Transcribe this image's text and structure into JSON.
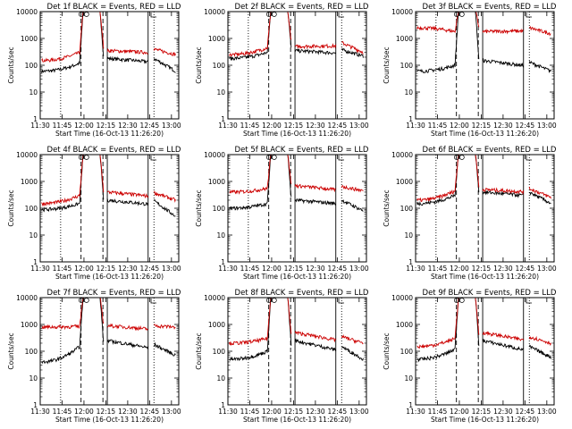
{
  "chart_data": [
    {
      "type": "line",
      "title": "Det 1f BLACK = Events, RED = LLD",
      "xlabel": "Start Time (16-Oct-13 11:26:20)",
      "ylabel": "Counts/sec",
      "yscale": "log",
      "ylim": [
        1,
        10000
      ],
      "x_ticklabels": [
        "11:30",
        "11:45",
        "12:00",
        "12:15",
        "12:30",
        "12:45",
        "13:00"
      ],
      "y_ticklabels": [
        "1",
        "10",
        "100",
        "1000",
        "10000"
      ],
      "series": [
        {
          "color": "#000000",
          "base_before": 60,
          "base_after": 180,
          "end": 60,
          "mid": [
            120,
            180
          ]
        },
        {
          "color": "#cc0000",
          "base_before": 150,
          "base_after": 350,
          "end": 250,
          "mid": [
            300,
            400
          ]
        }
      ],
      "vlines": {
        "dashed": [
          "11:58",
          "12:13"
        ],
        "dotted": [
          "11:44",
          "12:48"
        ],
        "solid": [
          "12:16",
          "12:44"
        ]
      }
    },
    {
      "type": "line",
      "title": "Det 2f BLACK = Events, RED = LLD",
      "xlabel": "Start Time (16-Oct-13 11:26:20)",
      "ylabel": "Counts/sec",
      "yscale": "log",
      "ylim": [
        1,
        10000
      ],
      "x_ticklabels": [
        "11:30",
        "11:45",
        "12:00",
        "12:15",
        "12:30",
        "12:45",
        "13:00"
      ],
      "y_ticklabels": [
        "1",
        "10",
        "100",
        "1000",
        "10000"
      ],
      "series": [
        {
          "color": "#000000",
          "base_before": 180,
          "base_after": 350,
          "end": 220,
          "mid": [
            300,
            380
          ]
        },
        {
          "color": "#cc0000",
          "base_before": 250,
          "base_after": 500,
          "end": 300,
          "mid": [
            450,
            700
          ]
        }
      ],
      "vlines": {
        "dashed": [
          "11:58",
          "12:13"
        ],
        "dotted": [
          "11:44",
          "12:48"
        ],
        "solid": [
          "12:16",
          "12:44"
        ]
      }
    },
    {
      "type": "line",
      "title": "Det 3f BLACK = Events, RED = LLD",
      "xlabel": "Start Time (16-Oct-13 11:26:20)",
      "ylabel": "Counts/sec",
      "yscale": "log",
      "ylim": [
        1,
        10000
      ],
      "x_ticklabels": [
        "11:30",
        "11:45",
        "12:00",
        "12:15",
        "12:30",
        "12:45",
        "13:00"
      ],
      "y_ticklabels": [
        "1",
        "10",
        "100",
        "1000",
        "10000"
      ],
      "series": [
        {
          "color": "#000000",
          "base_before": 60,
          "base_after": 150,
          "end": 60,
          "mid": [
            100,
            130
          ]
        },
        {
          "color": "#cc0000",
          "base_before": 2500,
          "base_after": 1800,
          "end": 1500,
          "mid": [
            1800,
            2500
          ]
        }
      ],
      "vlines": {
        "dashed": [
          "11:58",
          "12:13"
        ],
        "dotted": [
          "11:44",
          "12:48"
        ],
        "solid": [
          "12:16",
          "12:44"
        ]
      }
    },
    {
      "type": "line",
      "title": "Det 4f BLACK = Events, RED = LLD",
      "xlabel": "Start Time (16-Oct-13 11:26:20)",
      "ylabel": "Counts/sec",
      "yscale": "log",
      "ylim": [
        1,
        10000
      ],
      "x_ticklabels": [
        "11:30",
        "11:45",
        "12:00",
        "12:15",
        "12:30",
        "12:45",
        "13:00"
      ],
      "y_ticklabels": [
        "1",
        "10",
        "100",
        "1000",
        "10000"
      ],
      "series": [
        {
          "color": "#000000",
          "base_before": 90,
          "base_after": 200,
          "end": 50,
          "mid": [
            150,
            190
          ]
        },
        {
          "color": "#cc0000",
          "base_before": 150,
          "base_after": 400,
          "end": 200,
          "mid": [
            300,
            380
          ]
        }
      ],
      "vlines": {
        "dashed": [
          "11:58",
          "12:13"
        ],
        "dotted": [
          "11:44",
          "12:48"
        ],
        "solid": [
          "12:16",
          "12:44"
        ]
      }
    },
    {
      "type": "line",
      "title": "Det 5f BLACK = Events, RED = LLD",
      "xlabel": "Start Time (16-Oct-13 11:26:20)",
      "ylabel": "Counts/sec",
      "yscale": "log",
      "ylim": [
        1,
        10000
      ],
      "x_ticklabels": [
        "11:30",
        "11:45",
        "12:00",
        "12:15",
        "12:30",
        "12:45",
        "13:00"
      ],
      "y_ticklabels": [
        "1",
        "10",
        "100",
        "1000",
        "10000"
      ],
      "series": [
        {
          "color": "#000000",
          "base_before": 100,
          "base_after": 200,
          "end": 80,
          "mid": [
            150,
            200
          ]
        },
        {
          "color": "#cc0000",
          "base_before": 400,
          "base_after": 700,
          "end": 450,
          "mid": [
            550,
            650
          ]
        }
      ],
      "vlines": {
        "dashed": [
          "11:58",
          "12:13"
        ],
        "dotted": [
          "11:44",
          "12:48"
        ],
        "solid": [
          "12:16",
          "12:44"
        ]
      }
    },
    {
      "type": "line",
      "title": "Det 6f BLACK = Events, RED = LLD",
      "xlabel": "Start Time (16-Oct-13 11:26:20)",
      "ylabel": "Counts/sec",
      "yscale": "log",
      "ylim": [
        1,
        10000
      ],
      "x_ticklabels": [
        "11:30",
        "11:45",
        "12:00",
        "12:15",
        "12:30",
        "12:45",
        "13:00"
      ],
      "y_ticklabels": [
        "1",
        "10",
        "100",
        "1000",
        "10000"
      ],
      "series": [
        {
          "color": "#000000",
          "base_before": 150,
          "base_after": 400,
          "end": 150,
          "mid": [
            300,
            400
          ]
        },
        {
          "color": "#cc0000",
          "base_before": 200,
          "base_after": 500,
          "end": 250,
          "mid": [
            450,
            550
          ]
        }
      ],
      "vlines": {
        "dashed": [
          "11:58",
          "12:13"
        ],
        "dotted": [
          "11:44",
          "12:48"
        ],
        "solid": [
          "12:16",
          "12:44"
        ]
      }
    },
    {
      "type": "line",
      "title": "Det 7f BLACK = Events, RED = LLD",
      "xlabel": "Start Time (16-Oct-13 11:26:20)",
      "ylabel": "Counts/sec",
      "yscale": "log",
      "ylim": [
        1,
        10000
      ],
      "x_ticklabels": [
        "11:30",
        "11:45",
        "12:00",
        "12:15",
        "12:30",
        "12:45",
        "13:00"
      ],
      "y_ticklabels": [
        "1",
        "10",
        "100",
        "1000",
        "10000"
      ],
      "series": [
        {
          "color": "#000000",
          "base_before": 40,
          "base_after": 250,
          "end": 70,
          "mid": [
            150,
            180
          ]
        },
        {
          "color": "#cc0000",
          "base_before": 800,
          "base_after": 900,
          "end": 800,
          "mid": [
            850,
            900
          ]
        }
      ],
      "vlines": {
        "dashed": [
          "11:58",
          "12:13"
        ],
        "dotted": [
          "11:44",
          "12:48"
        ],
        "solid": [
          "12:16",
          "12:44"
        ]
      }
    },
    {
      "type": "line",
      "title": "Det 8f BLACK = Events, RED = LLD",
      "xlabel": "Start Time (16-Oct-13 11:26:20)",
      "ylabel": "Counts/sec",
      "yscale": "log",
      "ylim": [
        1,
        10000
      ],
      "x_ticklabels": [
        "11:30",
        "11:45",
        "12:00",
        "12:15",
        "12:30",
        "12:45",
        "13:00"
      ],
      "y_ticklabels": [
        "1",
        "10",
        "100",
        "1000",
        "10000"
      ],
      "series": [
        {
          "color": "#000000",
          "base_before": 50,
          "base_after": 250,
          "end": 50,
          "mid": [
            100,
            150
          ]
        },
        {
          "color": "#cc0000",
          "base_before": 200,
          "base_after": 500,
          "end": 200,
          "mid": [
            300,
            350
          ]
        }
      ],
      "vlines": {
        "dashed": [
          "11:58",
          "12:13"
        ],
        "dotted": [
          "11:44",
          "12:48"
        ],
        "solid": [
          "12:16",
          "12:44"
        ]
      }
    },
    {
      "type": "line",
      "title": "Det 9f BLACK = Events, RED = LLD",
      "xlabel": "Start Time (16-Oct-13 11:26:20)",
      "ylabel": "Counts/sec",
      "yscale": "log",
      "ylim": [
        1,
        10000
      ],
      "x_ticklabels": [
        "11:30",
        "11:45",
        "12:00",
        "12:15",
        "12:30",
        "12:45",
        "13:00"
      ],
      "y_ticklabels": [
        "1",
        "10",
        "100",
        "1000",
        "10000"
      ],
      "series": [
        {
          "color": "#000000",
          "base_before": 50,
          "base_after": 250,
          "end": 60,
          "mid": [
            120,
            150
          ]
        },
        {
          "color": "#cc0000",
          "base_before": 150,
          "base_after": 500,
          "end": 200,
          "mid": [
            300,
            350
          ]
        }
      ],
      "vlines": {
        "dashed": [
          "11:58",
          "12:13"
        ],
        "dotted": [
          "11:44",
          "12:48"
        ],
        "solid": [
          "12:16",
          "12:44"
        ]
      }
    }
  ]
}
